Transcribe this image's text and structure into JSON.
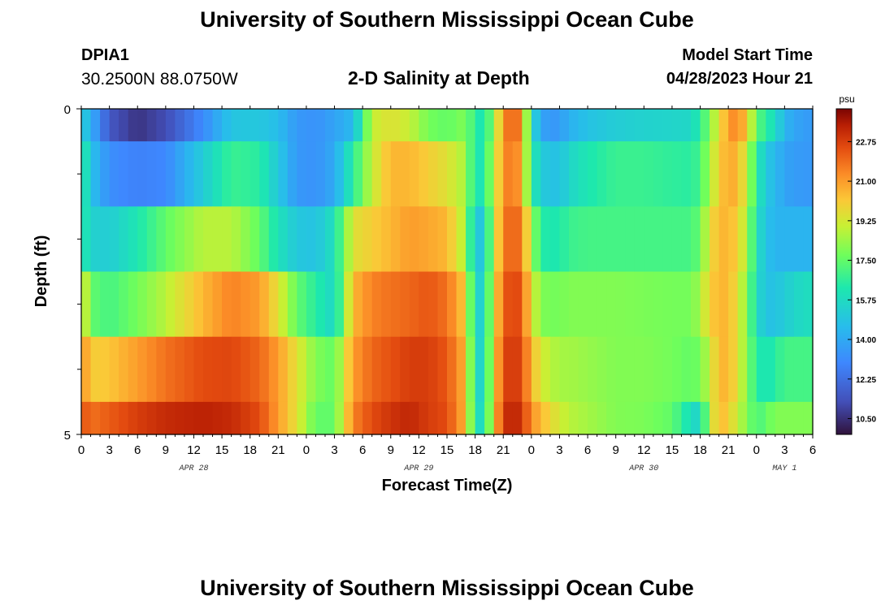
{
  "header": {
    "title": "University of Southern Mississippi Ocean Cube",
    "station_id": "DPIA1",
    "coordinates": "30.2500N  88.0750W",
    "chart_title": "2-D Salinity at Depth",
    "start_label": "Model Start Time",
    "start_value": "04/28/2023 Hour 21"
  },
  "footer": {
    "title": "University of Southern Mississippi Ocean Cube"
  },
  "colors": {
    "background": "#ffffff",
    "frame": "#000000"
  },
  "chart_data": {
    "type": "heatmap",
    "title": "2-D Salinity at Depth",
    "xlabel": "Forecast Time(Z)",
    "ylabel": "Depth (ft)",
    "x_tick_labels": [
      "0",
      "3",
      "6",
      "9",
      "12",
      "15",
      "18",
      "21",
      "0",
      "3",
      "6",
      "9",
      "12",
      "15",
      "18",
      "21",
      "0",
      "3",
      "6",
      "9",
      "12",
      "15",
      "18",
      "21",
      "0",
      "3",
      "6"
    ],
    "x_range_hours": [
      0,
      78
    ],
    "date_labels": [
      {
        "label": "APR 28",
        "hour": 12
      },
      {
        "label": "APR 29",
        "hour": 36
      },
      {
        "label": "APR 30",
        "hour": 60
      },
      {
        "label": "MAY 1",
        "hour": 75
      }
    ],
    "y_tick_labels": [
      {
        "label": "0",
        "depth": 0
      },
      {
        "label": "5",
        "depth": 5
      }
    ],
    "y_range_ft": [
      0,
      5
    ],
    "y_minor_ticks_ft": [
      1,
      2,
      3,
      4
    ],
    "depth_rows_ft": [
      0,
      1,
      2,
      3,
      4,
      5
    ],
    "colorbar": {
      "unit": "psu",
      "min": 9.8,
      "max": 24.2,
      "tick_labels": [
        "10.50",
        "12.25",
        "14.00",
        "15.75",
        "17.50",
        "19.25",
        "21.00",
        "22.75"
      ],
      "tick_values": [
        10.5,
        12.25,
        14.0,
        15.75,
        17.5,
        19.25,
        21.0,
        22.75
      ]
    },
    "salinity_keyframes": {
      "hours": [
        0,
        1,
        3,
        6,
        9,
        13,
        16,
        19,
        21,
        23,
        25,
        27,
        29,
        31,
        33,
        35,
        37,
        39,
        41,
        42,
        43,
        44,
        45,
        46,
        47,
        48,
        49,
        50,
        51,
        52,
        54,
        57,
        60,
        63,
        65,
        66,
        67,
        68,
        69,
        70,
        71,
        72,
        73,
        74,
        75,
        77,
        78
      ],
      "depth_0": [
        15.3,
        14.3,
        11.5,
        10.6,
        11.2,
        13.1,
        14.9,
        15.0,
        14.6,
        13.5,
        13.3,
        13.8,
        14.5,
        19.0,
        19.5,
        19.0,
        17.8,
        17.5,
        18.0,
        16.5,
        16.0,
        18.5,
        21.0,
        22.5,
        21.0,
        15.8,
        14.0,
        13.4,
        13.6,
        14.2,
        14.8,
        15.2,
        15.4,
        15.5,
        15.6,
        16.5,
        18.0,
        19.5,
        21.0,
        21.5,
        20.0,
        17.5,
        16.5,
        15.8,
        14.3,
        13.6,
        13.6
      ],
      "depth_1": [
        17.0,
        14.8,
        13.2,
        12.8,
        13.0,
        15.2,
        16.8,
        16.5,
        15.0,
        13.5,
        13.3,
        14.0,
        16.5,
        19.0,
        20.5,
        20.5,
        20.0,
        19.5,
        18.5,
        16.0,
        16.3,
        19.0,
        21.0,
        22.0,
        20.5,
        16.5,
        15.2,
        14.8,
        14.8,
        15.5,
        16.2,
        16.8,
        16.8,
        16.6,
        16.5,
        17.0,
        18.5,
        20.0,
        20.8,
        20.5,
        19.0,
        16.5,
        15.0,
        14.5,
        13.8,
        13.5,
        13.5
      ],
      "depth_2": [
        16.6,
        15.4,
        15.2,
        16.2,
        17.5,
        18.8,
        18.8,
        17.5,
        16.0,
        15.0,
        14.8,
        16.0,
        19.5,
        20.0,
        20.5,
        21.0,
        20.8,
        20.5,
        18.5,
        14.8,
        15.2,
        19.0,
        21.5,
        22.3,
        21.5,
        18.5,
        16.5,
        16.2,
        16.3,
        16.8,
        17.0,
        17.0,
        17.0,
        17.0,
        17.0,
        17.6,
        19.5,
        20.5,
        20.5,
        20.0,
        18.5,
        16.0,
        14.8,
        14.3,
        14.3,
        14.3,
        14.3
      ],
      "depth_3": [
        20.0,
        17.5,
        17.0,
        17.8,
        18.8,
        20.5,
        21.5,
        21.0,
        19.5,
        17.5,
        16.5,
        15.5,
        20.5,
        21.5,
        21.8,
        22.0,
        22.3,
        21.8,
        20.0,
        15.2,
        15.6,
        19.5,
        22.0,
        22.8,
        22.2,
        19.5,
        18.0,
        17.8,
        17.8,
        18.0,
        18.0,
        18.0,
        17.9,
        17.8,
        17.8,
        18.5,
        20.0,
        20.5,
        20.5,
        19.5,
        18.0,
        15.8,
        14.8,
        14.8,
        15.2,
        15.8,
        15.8
      ],
      "depth_4": [
        21.5,
        20.0,
        20.2,
        21.0,
        21.8,
        22.5,
        22.6,
        22.0,
        21.0,
        19.5,
        18.0,
        17.5,
        21.0,
        22.0,
        22.4,
        22.8,
        22.8,
        22.3,
        20.5,
        15.5,
        15.6,
        19.8,
        22.5,
        23.0,
        22.5,
        20.5,
        19.3,
        18.8,
        18.5,
        18.5,
        18.3,
        18.0,
        18.0,
        17.8,
        17.5,
        17.8,
        19.0,
        20.5,
        20.5,
        19.5,
        18.0,
        16.5,
        16.0,
        16.5,
        17.0,
        17.0,
        17.0
      ],
      "depth_5": [
        22.5,
        21.8,
        22.2,
        22.8,
        23.2,
        23.4,
        23.2,
        22.5,
        21.0,
        19.5,
        17.5,
        17.5,
        21.5,
        22.5,
        23.0,
        23.3,
        22.8,
        22.5,
        20.5,
        15.8,
        15.8,
        20.0,
        23.0,
        23.4,
        23.0,
        21.2,
        20.5,
        19.8,
        19.2,
        18.8,
        18.5,
        18.0,
        17.9,
        17.5,
        15.8,
        15.5,
        18.8,
        20.5,
        20.0,
        19.0,
        18.0,
        17.0,
        17.5,
        18.0,
        18.0,
        18.0,
        18.0
      ]
    }
  }
}
